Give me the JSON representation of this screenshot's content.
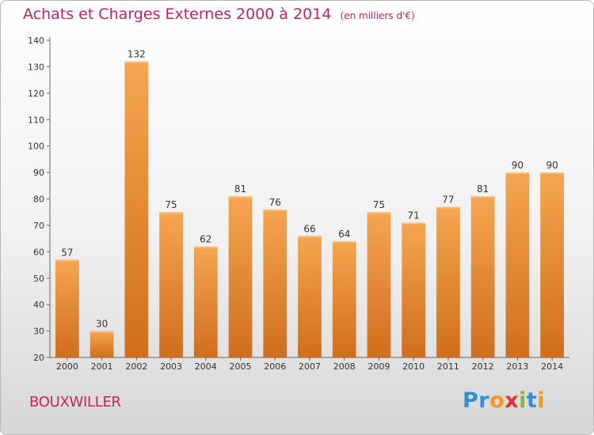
{
  "title": "Achats et Charges Externes 2000 à 2014",
  "unit_note": "(en milliers d'€)",
  "city": "BOUXWILLER",
  "logo_text": "Proxiti",
  "colors": {
    "bar_light": "#f6a550",
    "bar_dark": "#d06e1c",
    "title": "#c0245c"
  },
  "chart_data": {
    "type": "bar",
    "title": "Achats et Charges Externes 2000 à 2014",
    "subtitle": "(en milliers d'€)",
    "categories": [
      "2000",
      "2001",
      "2002",
      "2003",
      "2004",
      "2005",
      "2006",
      "2007",
      "2008",
      "2009",
      "2010",
      "2011",
      "2012",
      "2013",
      "2014"
    ],
    "values": [
      57,
      30,
      132,
      75,
      62,
      81,
      76,
      66,
      64,
      75,
      71,
      77,
      81,
      90,
      90
    ],
    "ylim": [
      20,
      140
    ],
    "yticks": [
      20,
      30,
      40,
      50,
      60,
      70,
      80,
      90,
      100,
      110,
      120,
      130,
      140
    ],
    "grid": false,
    "data_labels": true
  }
}
